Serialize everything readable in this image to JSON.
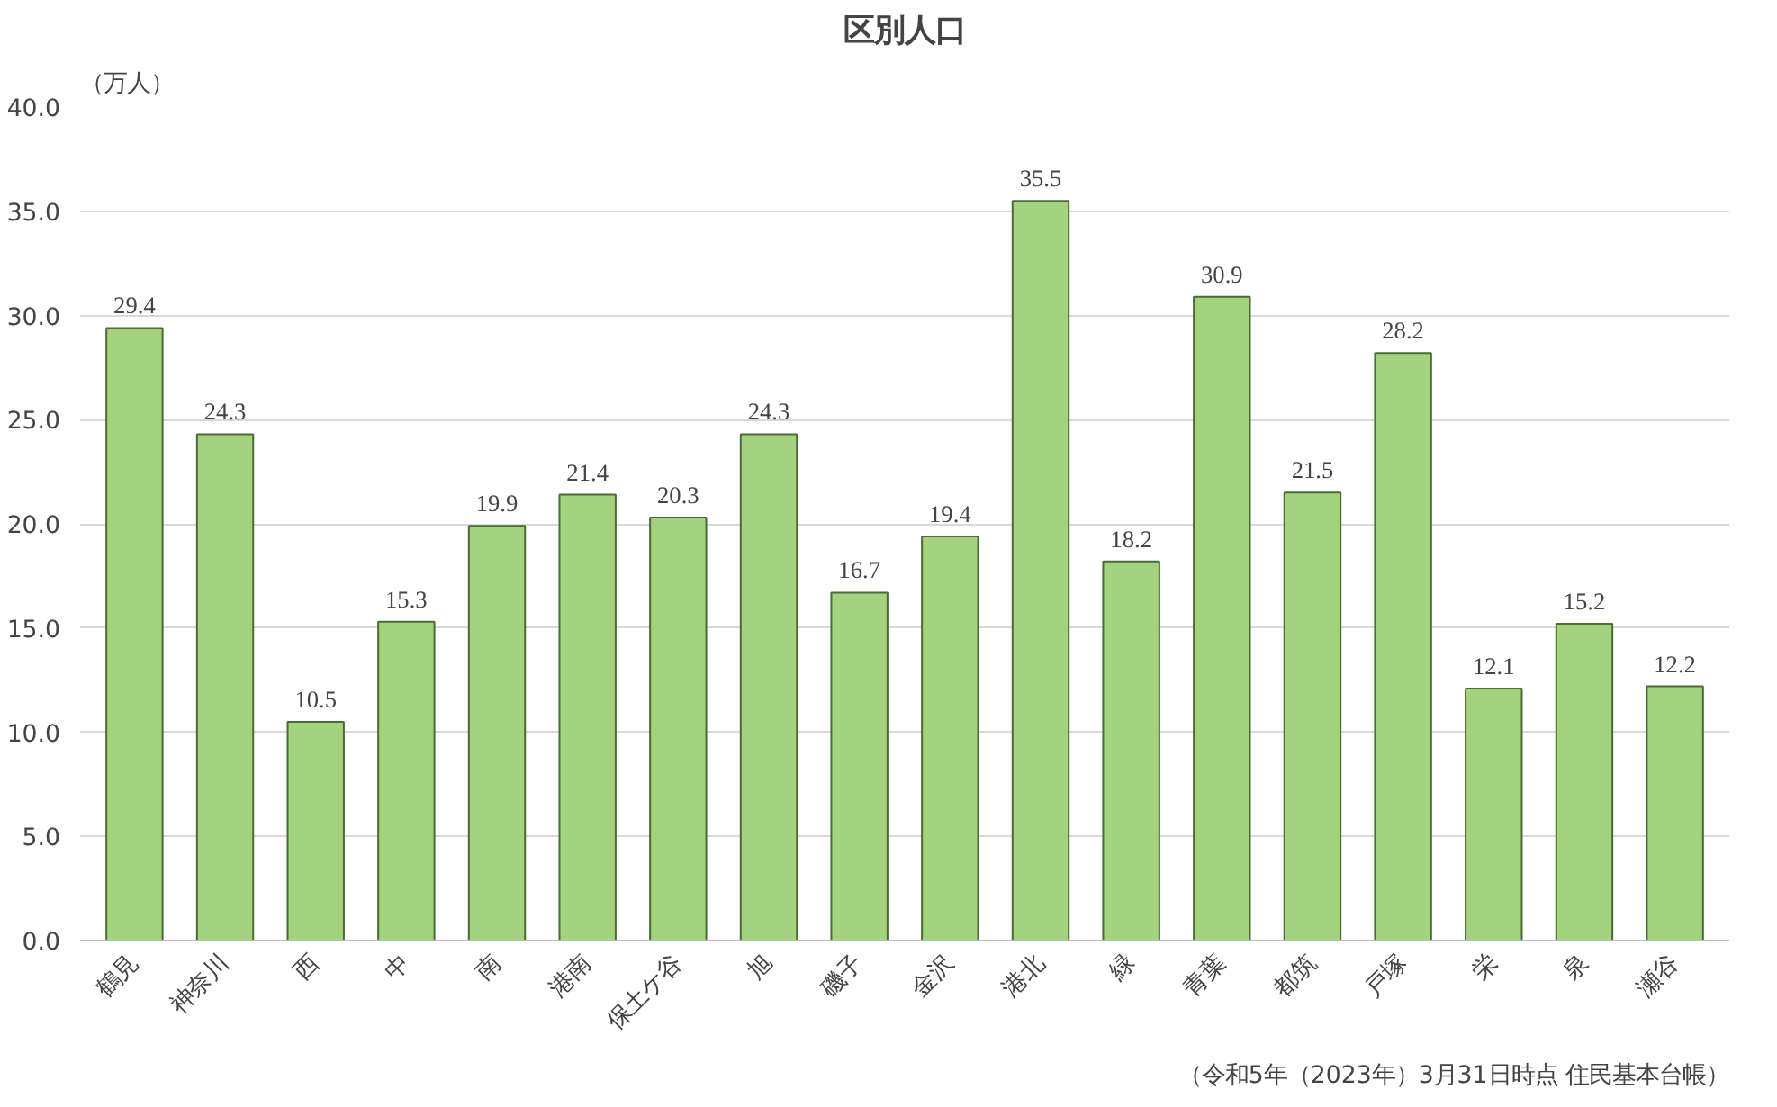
{
  "chart_data": {
    "type": "bar",
    "title": "区別人口",
    "ylabel": "（万人）",
    "categories": [
      "鶴見",
      "神奈川",
      "西",
      "中",
      "南",
      "港南",
      "保土ケ谷",
      "旭",
      "磯子",
      "金沢",
      "港北",
      "緑",
      "青葉",
      "都筑",
      "戸塚",
      "栄",
      "泉",
      "瀬谷"
    ],
    "values": [
      29.4,
      24.3,
      10.5,
      15.3,
      19.9,
      21.4,
      20.3,
      24.3,
      16.7,
      19.4,
      35.5,
      18.2,
      30.9,
      21.5,
      28.2,
      12.1,
      15.2,
      12.2
    ],
    "color": "#a3d37f",
    "ylim": [
      0,
      40
    ],
    "yticks": [
      {
        "value": 0,
        "label": "0.0"
      },
      {
        "value": 5,
        "label": "5.0"
      },
      {
        "value": 10,
        "label": "10.0"
      },
      {
        "value": 15,
        "label": "15.0"
      },
      {
        "value": 20,
        "label": "20.0"
      },
      {
        "value": 25,
        "label": "25.0"
      },
      {
        "value": 30,
        "label": "30.0"
      },
      {
        "value": 35,
        "label": "35.0"
      },
      {
        "value": 40,
        "label": "40.0"
      }
    ],
    "grid": "y",
    "data_labels": true,
    "annotations": [
      "（令和5年（2023年）3月31日時点 住民基本台帳）"
    ]
  }
}
